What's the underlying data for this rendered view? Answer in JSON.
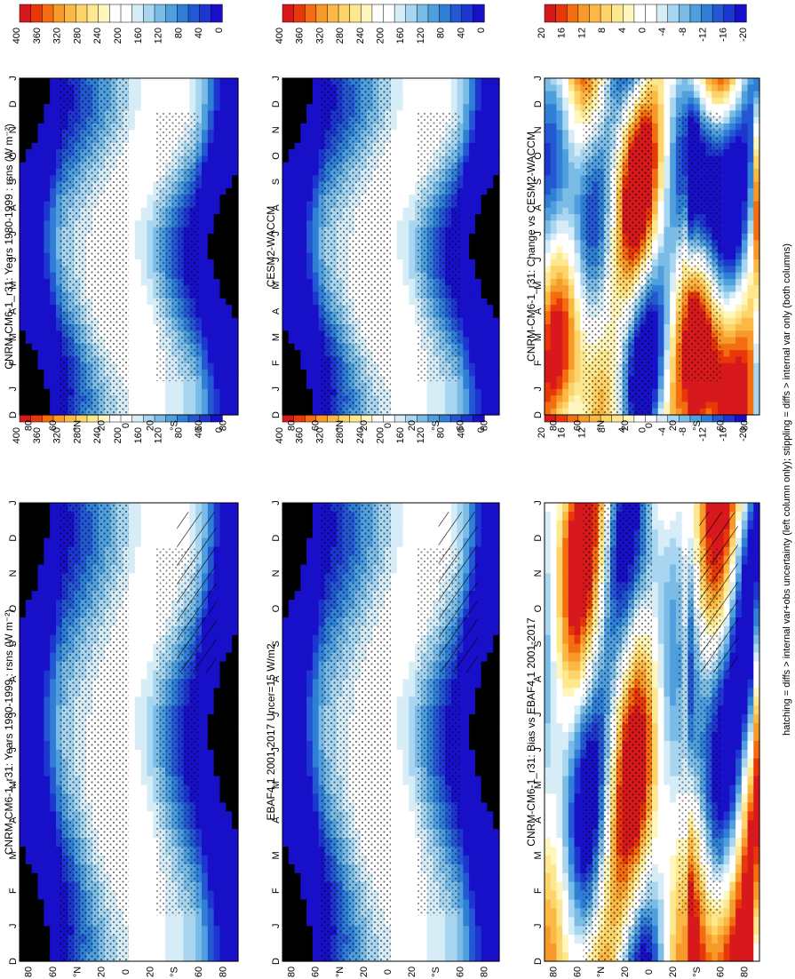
{
  "footnote": "hatching = diffs > internal var+obs uncertainty (left column only); stippling = diffs > internal var only (both columns)",
  "month_labels": [
    "D",
    "J",
    "F",
    "M",
    "A",
    "M",
    "J",
    "J",
    "A",
    "S",
    "O",
    "N",
    "D",
    "J"
  ],
  "lat_labels": [
    "80",
    "60",
    "°N",
    "20",
    "0",
    "20",
    "°S",
    "60",
    "80"
  ],
  "colorbars": {
    "rsns": {
      "labels": [
        "400",
        "360",
        "320",
        "280",
        "240",
        "200",
        "160",
        "120",
        "80",
        "40",
        "0"
      ],
      "colors": [
        "#d7191c",
        "#e8380a",
        "#f46d10",
        "#f89a2a",
        "#fbb845",
        "#fcd46a",
        "#fde890",
        "#fff6bd",
        "#ffffff",
        "#ffffff",
        "#d6ecf7",
        "#a8d6f0",
        "#7bbce6",
        "#4f9ede",
        "#2f7fd6",
        "#2458d2",
        "#1c36cf",
        "#1810c8"
      ]
    },
    "diff": {
      "labels": [
        "20",
        "16",
        "12",
        "8",
        "4",
        "0",
        "-4",
        "-8",
        "-12",
        "-16",
        "-20"
      ],
      "colors": [
        "#d7191c",
        "#e8380a",
        "#f46d10",
        "#f89a2a",
        "#fbb845",
        "#fcd46a",
        "#fde890",
        "#fff6bd",
        "#ffffff",
        "#ffffff",
        "#d6ecf7",
        "#a8d6f0",
        "#7bbce6",
        "#4f9ede",
        "#2f7fd6",
        "#2458d2",
        "#1c36cf",
        "#1810c8"
      ]
    }
  },
  "panels": [
    {
      "id": "left-top",
      "title": "CNRM-CM6-1_r31: Years 1980-1999 : rsns (W m⁻²)",
      "kind": "rsns",
      "hatched": true
    },
    {
      "id": "left-mid",
      "title": "EBAF4.1 2001-2017 Uncer=15 W/m2",
      "kind": "rsns",
      "hatched": true
    },
    {
      "id": "left-bot",
      "title": "CNRM-CM6-1_r31: Bias vs EBAF4.1 2001-2017",
      "kind": "diff",
      "hatched": true
    },
    {
      "id": "right-top",
      "title": "CNRM-CM6-1_r31: Years 1980-1999 : rsns (W m⁻²)",
      "kind": "rsns",
      "hatched": false
    },
    {
      "id": "right-mid",
      "title": "CESM2-WACCM",
      "kind": "rsns",
      "hatched": false
    },
    {
      "id": "right-bot",
      "title": "CNRM-CM6-1_r31: Change vs CESM2-WACCM",
      "kind": "diff",
      "hatched": false
    }
  ],
  "chart_data": [
    {
      "type": "heatmap",
      "title": "CNRM-CM6-1_r31: Years 1980-1999 : rsns (W m⁻²)",
      "x": "month",
      "y": "latitude",
      "xlim": [
        "D",
        "J"
      ],
      "ylim": [
        -90,
        90
      ],
      "zlim": [
        0,
        400
      ],
      "unit": "W m⁻²"
    },
    {
      "type": "heatmap",
      "title": "EBAF4.1 2001-2017 Uncer=15 W/m2",
      "x": "month",
      "y": "latitude",
      "xlim": [
        "D",
        "J"
      ],
      "ylim": [
        -90,
        90
      ],
      "zlim": [
        0,
        400
      ]
    },
    {
      "type": "heatmap",
      "title": "CNRM-CM6-1_r31: Bias vs EBAF4.1 2001-2017",
      "x": "month",
      "y": "latitude",
      "xlim": [
        "D",
        "J"
      ],
      "ylim": [
        -90,
        90
      ],
      "zlim": [
        -20,
        20
      ]
    },
    {
      "type": "heatmap",
      "title": "CNRM-CM6-1_r31: Years 1980-1999 : rsns (W m⁻²)",
      "x": "month",
      "y": "latitude",
      "xlim": [
        "D",
        "J"
      ],
      "ylim": [
        -90,
        90
      ],
      "zlim": [
        0,
        400
      ]
    },
    {
      "type": "heatmap",
      "title": "CESM2-WACCM",
      "x": "month",
      "y": "latitude",
      "xlim": [
        "D",
        "J"
      ],
      "ylim": [
        -90,
        90
      ],
      "zlim": [
        0,
        400
      ]
    },
    {
      "type": "heatmap",
      "title": "CNRM-CM6-1_r31: Change vs CESM2-WACCM",
      "x": "month",
      "y": "latitude",
      "xlim": [
        "D",
        "J"
      ],
      "ylim": [
        -90,
        90
      ],
      "zlim": [
        -20,
        20
      ]
    }
  ]
}
